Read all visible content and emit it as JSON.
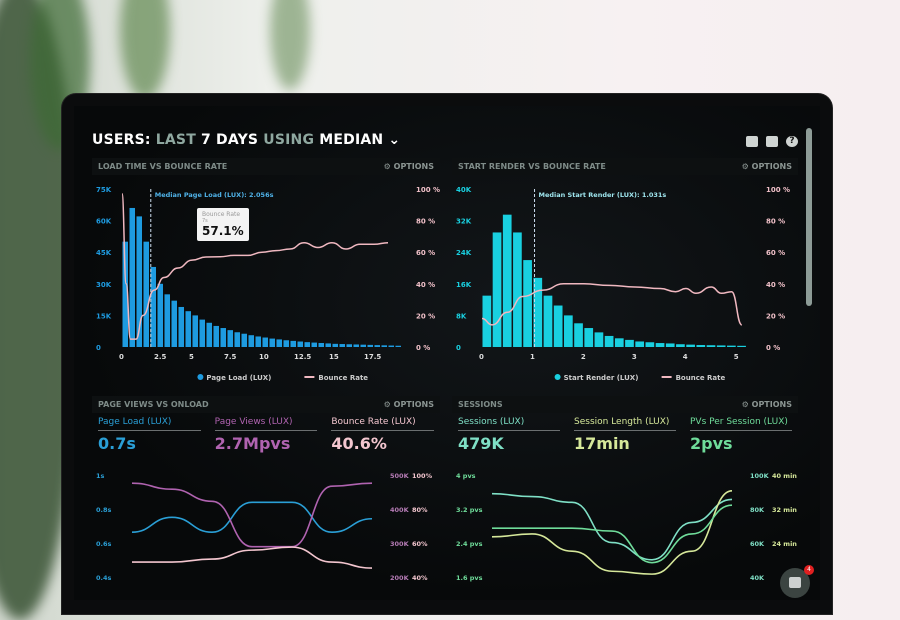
{
  "header": {
    "title_parts": [
      "USERS:",
      "LAST",
      "7 DAYS",
      "USING",
      "MEDIAN"
    ],
    "icons": [
      "monitor-icon",
      "share-icon",
      "help-icon"
    ]
  },
  "panels": {
    "load": {
      "title": "LOAD TIME VS BOUNCE RATE",
      "options": "OPTIONS",
      "median_label": "Median Page Load (LUX): 2.056s",
      "tooltip": {
        "label": "Bounce Rate",
        "sub": "7s",
        "value": "57.1%"
      },
      "legend": [
        "Page Load (LUX)",
        "Bounce Rate"
      ]
    },
    "render": {
      "title": "START RENDER VS BOUNCE RATE",
      "options": "OPTIONS",
      "median_label": "Median Start Render (LUX): 1.031s",
      "legend": [
        "Start Render (LUX)",
        "Bounce Rate"
      ]
    },
    "pageviews": {
      "title": "PAGE VIEWS VS ONLOAD",
      "options": "OPTIONS",
      "metrics": [
        {
          "label": "Page Load (LUX)",
          "value": "0.7s",
          "color": "#2a9fd6"
        },
        {
          "label": "Page Views (LUX)",
          "value": "2.7Mpvs",
          "color": "#b063b0"
        },
        {
          "label": "Bounce Rate (LUX)",
          "value": "40.6%",
          "color": "#f3c6cf"
        }
      ]
    },
    "sessions": {
      "title": "SESSIONS",
      "options": "OPTIONS",
      "metrics": [
        {
          "label": "Sessions (LUX)",
          "value": "479K",
          "color": "#7fe0c6"
        },
        {
          "label": "Session Length (LUX)",
          "value": "17min",
          "color": "#d6e89a"
        },
        {
          "label": "PVs Per Session (LUX)",
          "value": "2pvs",
          "color": "#6fdc9a"
        }
      ]
    }
  },
  "chat": {
    "badge": "4"
  },
  "chart_data": [
    {
      "type": "bar",
      "title": "LOAD TIME VS BOUNCE RATE",
      "ylim": [
        0,
        75000
      ],
      "y_ticks": [
        "0",
        "15K",
        "30K",
        "45K",
        "60K",
        "75K"
      ],
      "y2_ticks": [
        "0 %",
        "20 %",
        "40 %",
        "60 %",
        "80 %",
        "100 %"
      ],
      "x_ticks": [
        "0",
        "2.5",
        "5",
        "7.5",
        "10",
        "12.5",
        "15",
        "17.5"
      ],
      "xlim": [
        0,
        20
      ],
      "bar_width": 0.5,
      "median": 2.056,
      "series": [
        {
          "name": "Page Load (LUX)",
          "color": "#1e9be0",
          "values": [
            50,
            66,
            62,
            50,
            38,
            30,
            25,
            22,
            19,
            17,
            15,
            13,
            11.5,
            10,
            9,
            8,
            7,
            6.3,
            5.6,
            5,
            4.5,
            4,
            3.6,
            3.2,
            2.9,
            2.6,
            2.3,
            2.1,
            1.9,
            1.7,
            1.5,
            1.4,
            1.3,
            1.2,
            1.1,
            1,
            0.9,
            0.8,
            0.7,
            0.6
          ]
        },
        {
          "name": "Bounce Rate",
          "color": "#f0b8c0",
          "points": [
            [
              0,
              97
            ],
            [
              0.3,
              40
            ],
            [
              0.6,
              5
            ],
            [
              1,
              5
            ],
            [
              1.5,
              20
            ],
            [
              2.3,
              36
            ],
            [
              3,
              44
            ],
            [
              4,
              50
            ],
            [
              5,
              55
            ],
            [
              6,
              57
            ],
            [
              7,
              57.1
            ],
            [
              8,
              58
            ],
            [
              9,
              58
            ],
            [
              10,
              60
            ],
            [
              11,
              61
            ],
            [
              12,
              62
            ],
            [
              13,
              66
            ],
            [
              14,
              63
            ],
            [
              15,
              66
            ],
            [
              16,
              62
            ],
            [
              17,
              65
            ],
            [
              18,
              65
            ],
            [
              19,
              66
            ]
          ]
        }
      ]
    },
    {
      "type": "bar",
      "title": "START RENDER VS BOUNCE RATE",
      "ylim": [
        0,
        40000
      ],
      "y_ticks": [
        "0",
        "8K",
        "16K",
        "24K",
        "32K",
        "40K"
      ],
      "y2_ticks": [
        "0 %",
        "20 %",
        "40 %",
        "60 %",
        "80 %",
        "100 %"
      ],
      "x_ticks": [
        "0",
        "1",
        "2",
        "3",
        "4",
        "5"
      ],
      "xlim": [
        0,
        5.3
      ],
      "bar_width": 0.2,
      "median": 1.031,
      "series": [
        {
          "name": "Start Render (LUX)",
          "color": "#19d0e0",
          "values": [
            13,
            29,
            33.5,
            29,
            22,
            17.5,
            13,
            10.5,
            8,
            6,
            4.8,
            3.7,
            2.8,
            2.2,
            1.8,
            1.4,
            1.2,
            1,
            0.9,
            0.7,
            0.6,
            0.5,
            0.45,
            0.4,
            0.35,
            0.3
          ]
        },
        {
          "name": "Bounce Rate",
          "color": "#f0b8c0",
          "points": [
            [
              0,
              18
            ],
            [
              0.2,
              14
            ],
            [
              0.5,
              22
            ],
            [
              0.8,
              32
            ],
            [
              1.2,
              36
            ],
            [
              1.6,
              40
            ],
            [
              2,
              40
            ],
            [
              2.5,
              39
            ],
            [
              3,
              38
            ],
            [
              3.5,
              37
            ],
            [
              3.8,
              35
            ],
            [
              4,
              37
            ],
            [
              4.2,
              34
            ],
            [
              4.5,
              38
            ],
            [
              4.7,
              34
            ],
            [
              4.9,
              35
            ],
            [
              5.1,
              14
            ]
          ]
        }
      ]
    },
    {
      "type": "line",
      "title": "PAGE VIEWS VS ONLOAD",
      "y_ticks": [
        "0.4s",
        "0.6s",
        "0.8s",
        "1s"
      ],
      "y2_ticks": [
        "200K",
        "300K",
        "400K",
        "500K"
      ],
      "y3_ticks": [
        "40%",
        "60%",
        "80%",
        "100%"
      ],
      "series": [
        {
          "name": "Page Load (LUX)",
          "color": "#2a9fd6",
          "values": [
            0.6,
            0.7,
            0.6,
            0.8,
            0.8,
            0.6,
            0.69
          ]
        },
        {
          "name": "Page Views (LUX)",
          "color": "#b063b0",
          "values": [
            460,
            440,
            400,
            250,
            250,
            450,
            460
          ]
        },
        {
          "name": "Bounce Rate (LUX)",
          "color": "#f3c6cf",
          "values": [
            40,
            40,
            42,
            48,
            50,
            40,
            36
          ]
        }
      ]
    },
    {
      "type": "line",
      "title": "SESSIONS",
      "y_ticks": [
        "1.6 pvs",
        "2.4 pvs",
        "3.2 pvs",
        "4 pvs"
      ],
      "y2_ticks": [
        "40K",
        "60K",
        "80K",
        "100K"
      ],
      "y3_ticks": [
        "24 min",
        "32 min",
        "40 min"
      ],
      "series": [
        {
          "name": "Sessions (LUX)",
          "color": "#7fe0c6",
          "values": [
            3.2,
            3.1,
            2.9,
            1.5,
            0.9,
            2.2,
            3
          ]
        },
        {
          "name": "Session Length (LUX)",
          "color": "#d6e89a",
          "values": [
            1.7,
            1.8,
            1.2,
            0.5,
            0.4,
            1.2,
            3.3
          ]
        },
        {
          "name": "PVs Per Session (LUX)",
          "color": "#6fdc9a",
          "values": [
            2,
            2,
            2,
            1.9,
            0.8,
            1.8,
            2.8
          ]
        }
      ]
    }
  ]
}
